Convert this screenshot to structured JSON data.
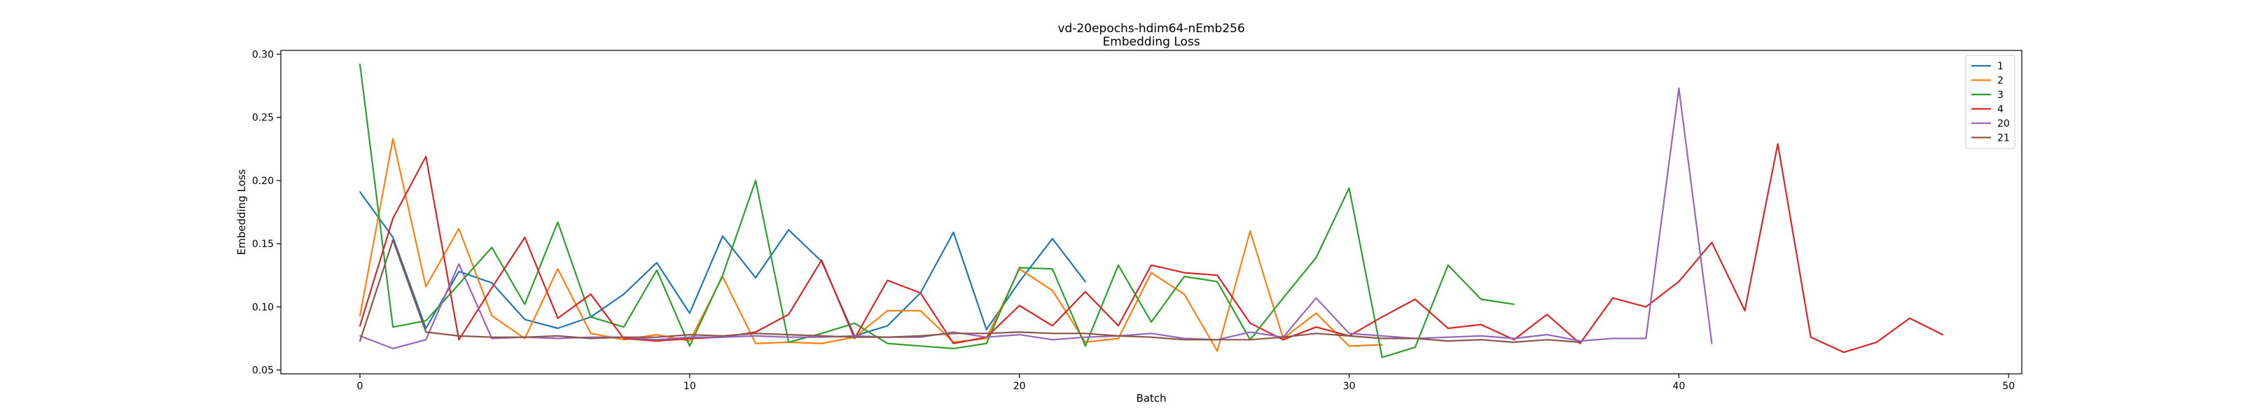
{
  "chart_data": {
    "type": "line",
    "title": "vd-20epochs-hdim64-nEmb256",
    "subtitle": "Embedding Loss",
    "xlabel": "Batch",
    "ylabel": "Embedding Loss",
    "xlim": [
      -2.4,
      50.4
    ],
    "ylim": [
      0.047,
      0.303
    ],
    "xticks": [
      0,
      10,
      20,
      30,
      40,
      50
    ],
    "yticks": [
      0.05,
      0.1,
      0.15,
      0.2,
      0.25,
      0.3
    ],
    "xtick_labels": [
      "0",
      "10",
      "20",
      "30",
      "40",
      "50"
    ],
    "ytick_labels": [
      "0.05",
      "0.10",
      "0.15",
      "0.20",
      "0.25",
      "0.30"
    ],
    "grid": false,
    "legend_position": "top-right",
    "series": [
      {
        "name": "1",
        "color": "#1f77b4",
        "values": [
          0.191,
          0.155,
          0.083,
          0.128,
          0.119,
          0.09,
          0.083,
          0.092,
          0.11,
          0.135,
          0.095,
          0.156,
          0.123,
          0.161,
          0.136,
          0.077,
          0.085,
          0.111,
          0.159,
          0.082,
          0.12,
          0.154,
          0.12
        ]
      },
      {
        "name": "2",
        "color": "#ff7f0e",
        "values": [
          0.093,
          0.233,
          0.116,
          0.162,
          0.093,
          0.075,
          0.13,
          0.079,
          0.074,
          0.078,
          0.073,
          0.124,
          0.071,
          0.072,
          0.071,
          0.076,
          0.097,
          0.097,
          0.072,
          0.075,
          0.13,
          0.113,
          0.072,
          0.075,
          0.127,
          0.11,
          0.065,
          0.16,
          0.075,
          0.095,
          0.069,
          0.07
        ]
      },
      {
        "name": "3",
        "color": "#2ca02c",
        "values": [
          0.292,
          0.084,
          0.089,
          0.118,
          0.147,
          0.102,
          0.167,
          0.092,
          0.084,
          0.129,
          0.069,
          0.125,
          0.2,
          0.072,
          0.079,
          0.087,
          0.071,
          0.069,
          0.067,
          0.071,
          0.131,
          0.13,
          0.069,
          0.133,
          0.088,
          0.124,
          0.12,
          0.074,
          0.107,
          0.139,
          0.194,
          0.06,
          0.068,
          0.133,
          0.106,
          0.102
        ]
      },
      {
        "name": "4",
        "color": "#d62728",
        "values": [
          0.085,
          0.17,
          0.219,
          0.074,
          0.115,
          0.155,
          0.091,
          0.11,
          0.075,
          0.073,
          0.075,
          0.076,
          0.08,
          0.094,
          0.137,
          0.075,
          0.121,
          0.111,
          0.071,
          0.076,
          0.101,
          0.085,
          0.112,
          0.085,
          0.133,
          0.127,
          0.125,
          0.087,
          0.074,
          0.084,
          0.077,
          0.092,
          0.106,
          0.083,
          0.086,
          0.074,
          0.094,
          0.071,
          0.107,
          0.1,
          0.12,
          0.151,
          0.097,
          0.229,
          0.076,
          0.064,
          0.072,
          0.091,
          0.078
        ]
      },
      {
        "name": "20",
        "color": "#9467bd",
        "values": [
          0.077,
          0.067,
          0.074,
          0.134,
          0.075,
          0.076,
          0.075,
          0.076,
          0.076,
          0.074,
          0.076,
          0.076,
          0.077,
          0.076,
          0.076,
          0.077,
          0.076,
          0.076,
          0.08,
          0.076,
          0.078,
          0.074,
          0.076,
          0.077,
          0.079,
          0.075,
          0.074,
          0.08,
          0.076,
          0.107,
          0.079,
          0.077,
          0.075,
          0.076,
          0.077,
          0.075,
          0.078,
          0.073,
          0.075,
          0.075,
          0.273,
          0.071
        ]
      },
      {
        "name": "21",
        "color": "#8c564b",
        "values": [
          0.073,
          0.153,
          0.08,
          0.077,
          0.076,
          0.076,
          0.077,
          0.075,
          0.076,
          0.076,
          0.078,
          0.077,
          0.079,
          0.078,
          0.077,
          0.076,
          0.076,
          0.077,
          0.079,
          0.079,
          0.08,
          0.079,
          0.079,
          0.077,
          0.076,
          0.074,
          0.074,
          0.074,
          0.076,
          0.079,
          0.077,
          0.075,
          0.075,
          0.073,
          0.074,
          0.072,
          0.074,
          0.072
        ]
      }
    ]
  }
}
